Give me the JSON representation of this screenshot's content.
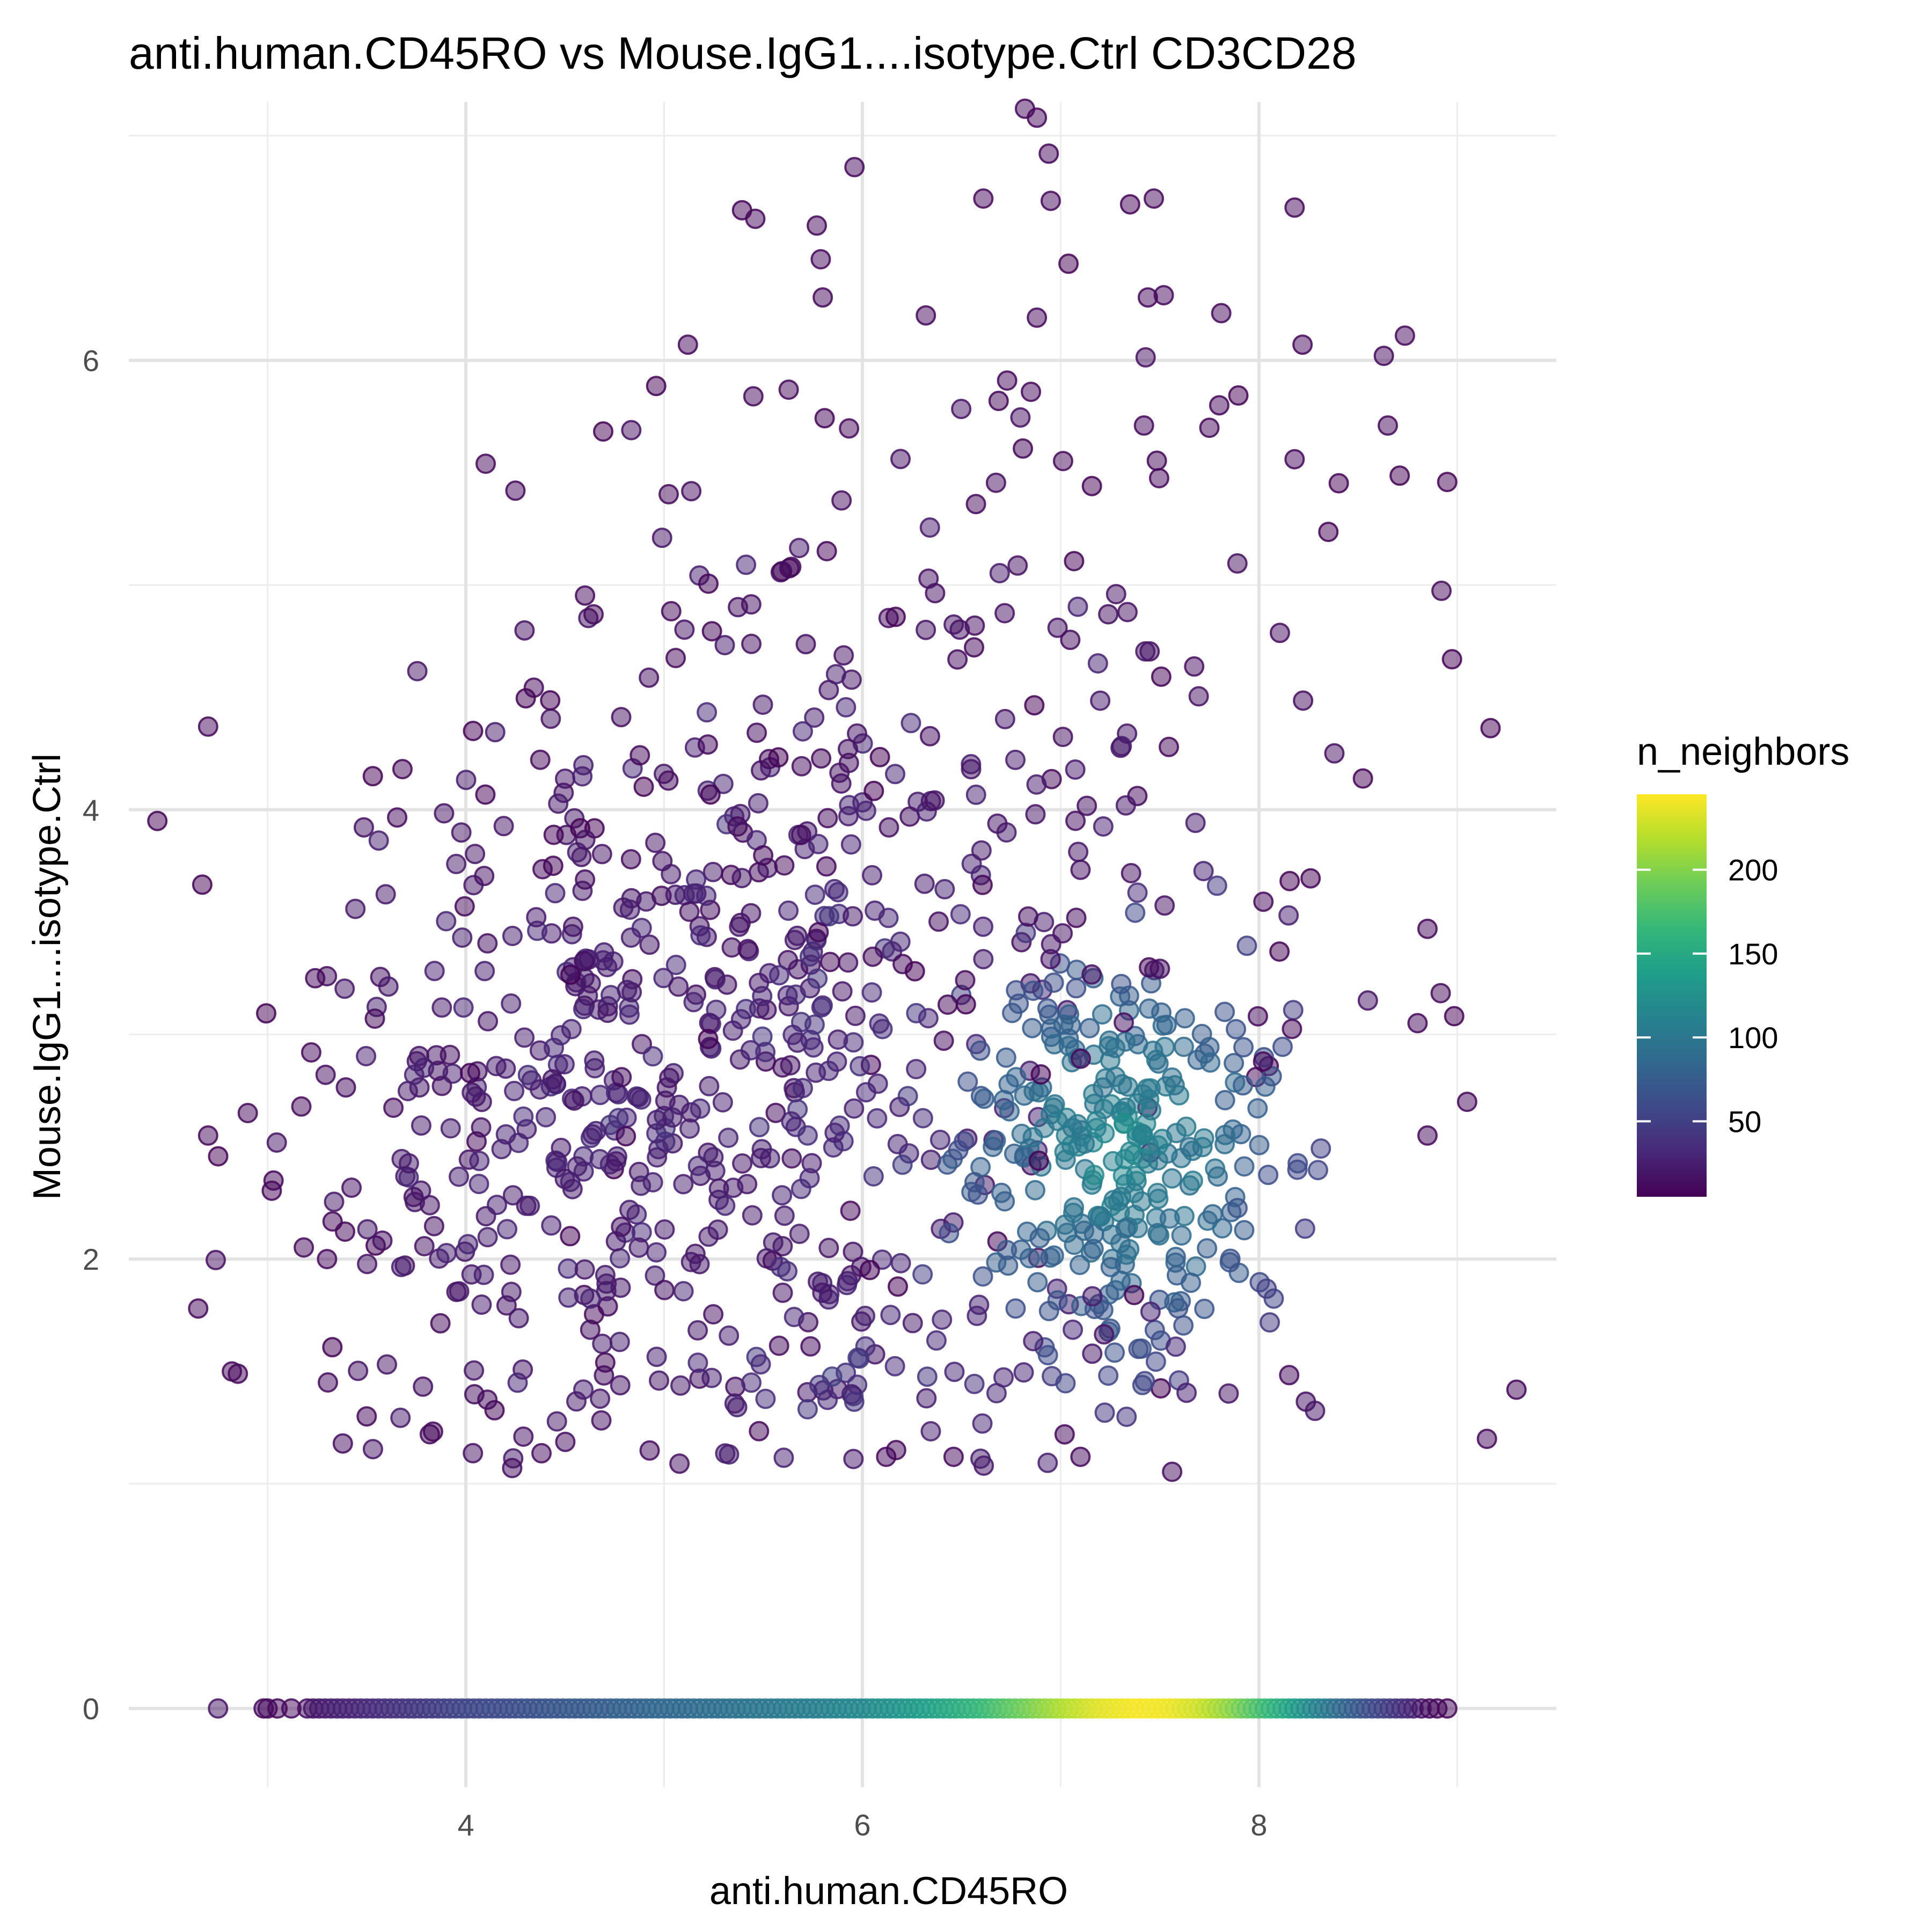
{
  "chart_data": {
    "type": "scatter",
    "title": "anti.human.CD45RO vs Mouse.IgG1....isotype.Ctrl CD3CD28",
    "xlabel": "anti.human.CD45RO",
    "ylabel": "Mouse.IgG1....isotype.Ctrl",
    "xlim": [
      2.3,
      9.5
    ],
    "ylim": [
      -0.35,
      7.15
    ],
    "x_ticks": [
      4,
      6,
      8
    ],
    "y_ticks": [
      0,
      2,
      4,
      6
    ],
    "grid": true,
    "legend": {
      "title": "n_neighbors",
      "position": "right",
      "type": "colorbar",
      "min": 5,
      "max": 245,
      "ticks": [
        50,
        100,
        150,
        200
      ],
      "colors": [
        "#440154",
        "#482878",
        "#3E4A89",
        "#31688E",
        "#26828E",
        "#1F9E89",
        "#35B779",
        "#6DCD59",
        "#B4DE2C",
        "#FDE725"
      ]
    },
    "point_alpha": 0.5,
    "series": [
      {
        "clusters": [
          {
            "cx": 4.6,
            "cy": 2.7,
            "sx": 0.75,
            "sy": 0.85,
            "n": 360,
            "nb": 20,
            "nbs": 8
          },
          {
            "cx": 5.8,
            "cy": 3.0,
            "sx": 0.75,
            "sy": 1.0,
            "n": 250,
            "nb": 25,
            "nbs": 8
          },
          {
            "cx": 7.3,
            "cy": 2.5,
            "sx": 0.45,
            "sy": 0.45,
            "n": 320,
            "nb": 85,
            "nbs": 30
          },
          {
            "cx": 6.6,
            "cy": 4.3,
            "sx": 1.3,
            "sy": 1.0,
            "n": 180,
            "nb": 12,
            "nbs": 5
          },
          {
            "cx": 6.0,
            "cy": 1.5,
            "sx": 0.9,
            "sy": 0.2,
            "n": 60,
            "nb": 30,
            "nbs": 10
          }
        ],
        "outliers": [
          [
            2.65,
            1.78
          ],
          [
            2.82,
            1.5
          ],
          [
            2.85,
            1.49
          ],
          [
            2.7,
            2.55
          ],
          [
            2.9,
            2.65
          ],
          [
            2.7,
            4.37
          ],
          [
            3.22,
            2.92
          ],
          [
            3.24,
            3.25
          ],
          [
            3.3,
            2.0
          ],
          [
            3.5,
            1.3
          ],
          [
            6.82,
            7.12
          ],
          [
            6.88,
            7.08
          ],
          [
            6.94,
            6.92
          ],
          [
            5.96,
            6.86
          ],
          [
            5.46,
            6.63
          ],
          [
            5.77,
            6.6
          ],
          [
            5.79,
            6.45
          ],
          [
            5.8,
            6.28
          ],
          [
            6.61,
            6.72
          ],
          [
            6.95,
            6.71
          ],
          [
            7.47,
            6.72
          ],
          [
            8.18,
            6.68
          ],
          [
            7.44,
            6.28
          ],
          [
            7.52,
            6.29
          ],
          [
            7.81,
            6.21
          ],
          [
            6.88,
            6.19
          ],
          [
            6.32,
            6.2
          ],
          [
            5.12,
            6.07
          ],
          [
            8.22,
            6.07
          ],
          [
            8.63,
            6.02
          ],
          [
            6.73,
            5.91
          ],
          [
            6.85,
            5.86
          ],
          [
            5.45,
            5.84
          ],
          [
            7.8,
            5.8
          ],
          [
            8.65,
            5.71
          ],
          [
            7.42,
            5.71
          ],
          [
            7.75,
            5.7
          ],
          [
            4.1,
            5.54
          ],
          [
            8.18,
            5.56
          ],
          [
            4.25,
            5.42
          ],
          [
            9.15,
            1.2
          ],
          [
            9.05,
            2.7
          ],
          [
            8.85,
            2.55
          ],
          [
            8.8,
            3.05
          ],
          [
            8.85,
            3.47
          ],
          [
            6.12,
            1.12
          ],
          [
            6.17,
            1.15
          ],
          [
            6.46,
            1.12
          ],
          [
            7.1,
            1.12
          ],
          [
            7.02,
            1.22
          ]
        ],
        "baseline": {
          "y": 0,
          "points": [
            [
              2.75,
              18
            ],
            [
              2.98,
              12
            ],
            [
              3.05,
              10
            ],
            [
              3.15,
              12
            ],
            [
              3.3,
              25
            ],
            [
              3.45,
              30
            ],
            [
              3.6,
              38
            ],
            [
              3.8,
              45
            ],
            [
              4.0,
              55
            ],
            [
              4.25,
              62
            ],
            [
              4.5,
              70
            ],
            [
              4.75,
              78
            ],
            [
              5.0,
              85
            ],
            [
              5.25,
              92
            ],
            [
              5.5,
              100
            ],
            [
              5.75,
              108
            ],
            [
              6.0,
              118
            ],
            [
              6.2,
              130
            ],
            [
              6.4,
              145
            ],
            [
              6.6,
              165
            ],
            [
              6.8,
              190
            ],
            [
              7.0,
              215
            ],
            [
              7.2,
              235
            ],
            [
              7.4,
              243
            ],
            [
              7.55,
              240
            ],
            [
              7.7,
              228
            ],
            [
              7.85,
              205
            ],
            [
              8.0,
              175
            ],
            [
              8.15,
              145
            ],
            [
              8.3,
              110
            ],
            [
              8.45,
              80
            ],
            [
              8.6,
              55
            ],
            [
              8.75,
              35
            ],
            [
              8.85,
              12
            ],
            [
              8.95,
              8
            ]
          ]
        }
      }
    ]
  }
}
